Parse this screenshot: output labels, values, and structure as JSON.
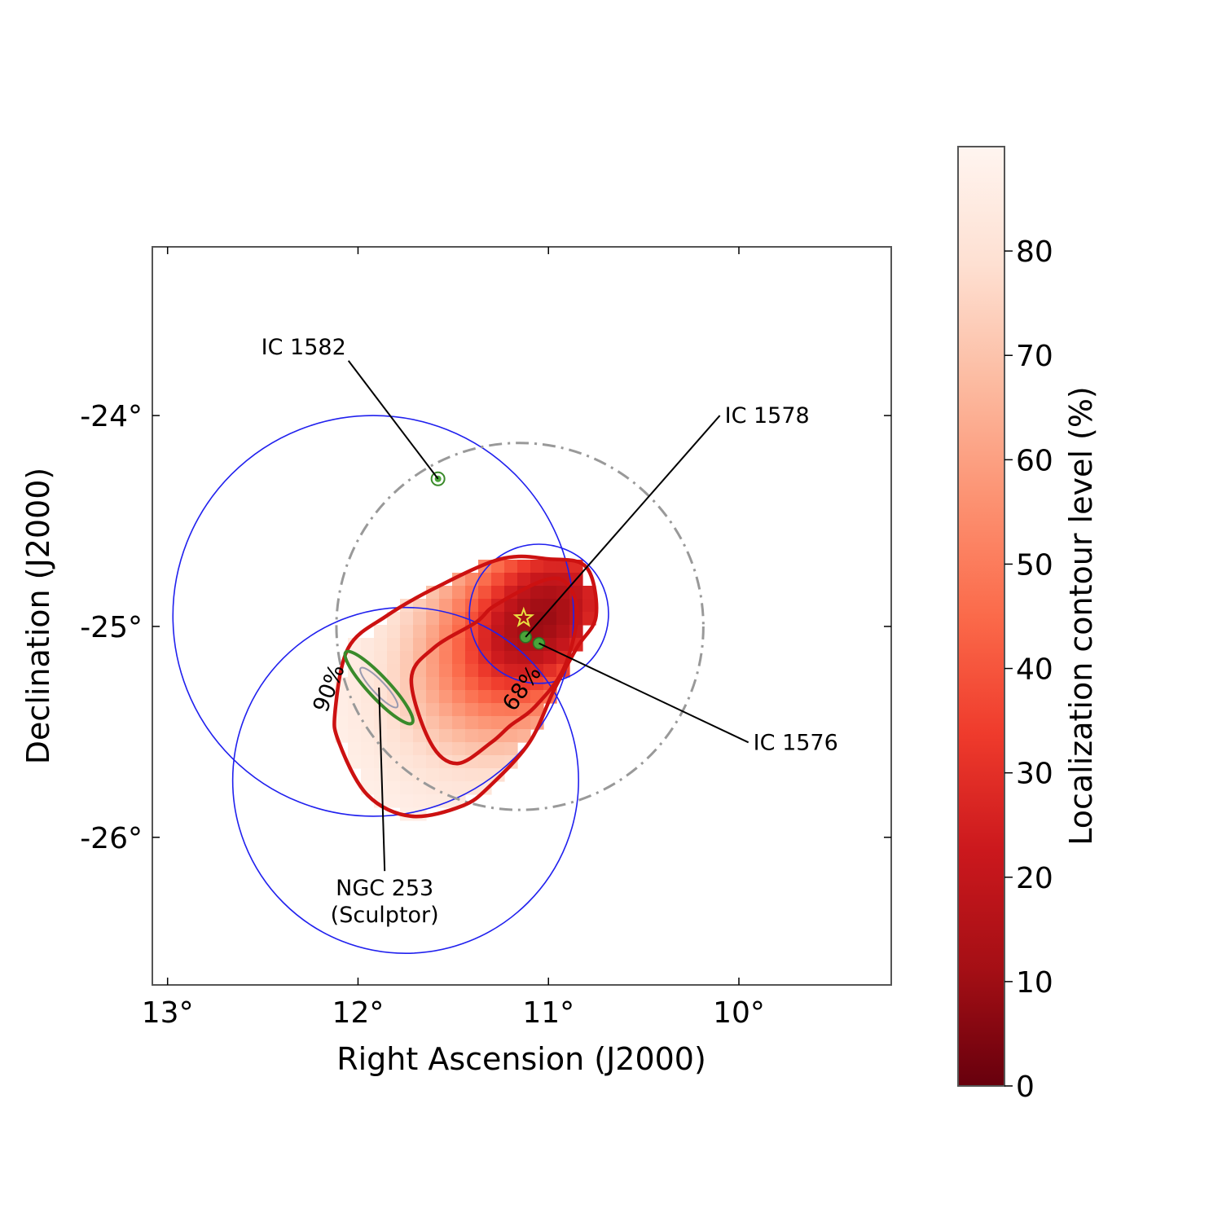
{
  "chart_data": {
    "type": "heatmap",
    "subtype": "sky localization map",
    "xlabel": "Right Ascension (J2000)",
    "ylabel": "Declination (J2000)",
    "x_range_deg": [
      13.08,
      9.2
    ],
    "y_range_deg": [
      -26.7,
      -23.2
    ],
    "x_ticks": [
      {
        "value": 13,
        "label": "13°"
      },
      {
        "value": 12,
        "label": "12°"
      },
      {
        "value": 11,
        "label": "11°"
      },
      {
        "value": 10,
        "label": "10°"
      }
    ],
    "y_ticks": [
      {
        "value": -24,
        "label": "-24°"
      },
      {
        "value": -25,
        "label": "-25°"
      },
      {
        "value": -26,
        "label": "-26°"
      }
    ],
    "heatmap": {
      "peak": {
        "ra": 11.05,
        "dec": -24.97
      },
      "spread_deg": {
        "along": 0.44,
        "across": 0.3
      },
      "axis_angle_deg": 38
    },
    "contours": [
      {
        "level": 68,
        "label": "68%",
        "color": "#cc1111",
        "path": [
          [
            11.02,
            -24.78
          ],
          [
            10.9,
            -24.8
          ],
          [
            10.85,
            -24.95
          ],
          [
            10.92,
            -25.2
          ],
          [
            11.07,
            -25.38
          ],
          [
            11.2,
            -25.47
          ],
          [
            11.3,
            -25.55
          ],
          [
            11.48,
            -25.65
          ],
          [
            11.62,
            -25.55
          ],
          [
            11.72,
            -25.25
          ],
          [
            11.6,
            -25.1
          ],
          [
            11.38,
            -24.98
          ],
          [
            11.28,
            -24.9
          ]
        ]
      },
      {
        "level": 90,
        "label": "90%",
        "color": "#cc1111",
        "path": [
          [
            11.0,
            -24.68
          ],
          [
            10.8,
            -24.72
          ],
          [
            10.75,
            -24.95
          ],
          [
            10.85,
            -25.1
          ],
          [
            10.97,
            -25.3
          ],
          [
            11.1,
            -25.55
          ],
          [
            11.3,
            -25.75
          ],
          [
            11.45,
            -25.85
          ],
          [
            11.72,
            -25.9
          ],
          [
            11.95,
            -25.8
          ],
          [
            12.1,
            -25.55
          ],
          [
            12.12,
            -25.4
          ],
          [
            12.05,
            -25.1
          ],
          [
            11.85,
            -24.95
          ],
          [
            11.6,
            -24.82
          ],
          [
            11.25,
            -24.68
          ]
        ]
      }
    ],
    "error_circles": [
      {
        "ra": 11.92,
        "dec": -24.95,
        "radius_deg": 0.95,
        "color": "#2020ee",
        "style": "solid"
      },
      {
        "ra": 11.75,
        "dec": -25.73,
        "radius_deg": 0.82,
        "color": "#2020ee",
        "style": "solid"
      },
      {
        "ra": 11.05,
        "dec": -24.94,
        "radius_deg": 0.33,
        "color": "#2020ee",
        "style": "solid"
      },
      {
        "ra": 11.15,
        "dec": -25.0,
        "radius_deg": 0.87,
        "color": "#999999",
        "style": "dashdot"
      }
    ],
    "star_marker": {
      "ra": 11.13,
      "dec": -24.96,
      "color": "#e8e040"
    },
    "galaxies": [
      {
        "name": "IC 1582",
        "ra": 11.58,
        "dec": -24.3,
        "label_ra": 12.2,
        "label_dec": -23.74,
        "marker": "circle"
      },
      {
        "name": "IC 1578",
        "ra": 11.12,
        "dec": -25.05,
        "label_ra": 10.1,
        "label_dec": -24.0,
        "marker": "dot"
      },
      {
        "name": "IC 1576",
        "ra": 11.05,
        "dec": -25.08,
        "label_ra": 9.95,
        "label_dec": -25.55,
        "marker": "dot"
      },
      {
        "name": "NGC 253 (Sculptor)",
        "lines": [
          "NGC 253",
          "(Sculptor)"
        ],
        "ra": 11.89,
        "dec": -25.29,
        "label_ra": 11.86,
        "label_dec": -26.16,
        "marker": "ellipse",
        "ellipse": {
          "semi_major_deg": 0.23,
          "semi_minor_deg": 0.05,
          "pa_deg": -47
        }
      }
    ],
    "colorbar": {
      "label": "Localization contour level (%)",
      "range": [
        0,
        90
      ],
      "ticks": [
        {
          "value": 0,
          "label": "0"
        },
        {
          "value": 10,
          "label": "10"
        },
        {
          "value": 20,
          "label": "20"
        },
        {
          "value": 30,
          "label": "30"
        },
        {
          "value": 40,
          "label": "40"
        },
        {
          "value": 50,
          "label": "50"
        },
        {
          "value": 60,
          "label": "60"
        },
        {
          "value": 70,
          "label": "70"
        },
        {
          "value": 80,
          "label": "80"
        }
      ],
      "colormap": [
        "#67000d",
        "#a50f15",
        "#cb181d",
        "#ef3b2c",
        "#fb6a4a",
        "#fc9272",
        "#fcbba1",
        "#fee0d2",
        "#fff5f0"
      ]
    }
  }
}
